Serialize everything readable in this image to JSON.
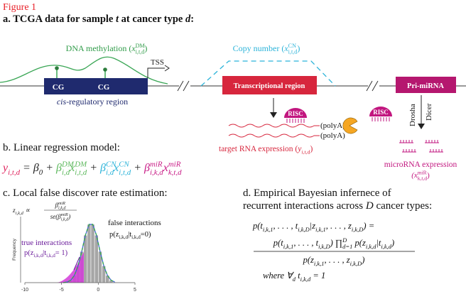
{
  "figure_label": "Figure 1",
  "panel_a": {
    "title": [
      {
        "text": "a. TCGA data for sample "
      },
      {
        "text": "t",
        "italic": true
      },
      {
        "text": " at cancer type "
      },
      {
        "text": "d",
        "italic": true
      },
      {
        "text": ":"
      }
    ],
    "methylation": [
      {
        "text": "DNA methylation ("
      },
      {
        "text": "x",
        "sup": "DM",
        "sub": "i,t,d",
        "italic": true
      },
      {
        "text": ")"
      }
    ],
    "copy_number": [
      {
        "text": "Copy number ("
      },
      {
        "text": "x",
        "sup": "CN",
        "sub": "i,t,d",
        "italic": true
      },
      {
        "text": ")"
      }
    ],
    "tss": "TSS",
    "cg": [
      "CG",
      "CG"
    ],
    "cis_region": [
      {
        "text": "cis",
        "italic": true
      },
      {
        "text": "-regulatory region"
      }
    ],
    "transcriptional_region": "Transcriptional region",
    "pri_mirna": "Pri-miRNA",
    "risc": [
      "RISC",
      "RISC"
    ],
    "polya": [
      "(polyA)",
      "(polyA)"
    ],
    "drosha": "Drosha",
    "dicer": "Dicer",
    "target_expression": [
      {
        "text": "target RNA expression ("
      },
      {
        "text": "y",
        "sub": "i,t,d",
        "italic": true
      },
      {
        "text": ")"
      }
    ],
    "mirna_expression": "microRNA expression",
    "mirna_symbol": [
      {
        "text": "(x",
        "sup": "miR",
        "sub": "k,t,d",
        "italic": true
      },
      {
        "text": ")"
      }
    ]
  },
  "panel_b": {
    "title": "b. Linear regression model:",
    "equation": [
      {
        "text": "y",
        "sub": "i,t,d",
        "color": "#e0245e"
      },
      {
        "text": " = β",
        "sub": "0",
        "color": "#222222"
      },
      {
        "text": " + ",
        "color": "#222222"
      },
      {
        "text": "β",
        "sup": "DM",
        "sub": "i,d",
        "color": "#5cb85c"
      },
      {
        "text": "x",
        "sup": "DM",
        "sub": "i,t,d",
        "color": "#5cb85c"
      },
      {
        "text": " + ",
        "color": "#222222"
      },
      {
        "text": "β",
        "sup": "CN",
        "sub": "i,d",
        "color": "#2bb3d9"
      },
      {
        "text": "x",
        "sup": "CN",
        "sub": "i,t,d",
        "color": "#2bb3d9"
      },
      {
        "text": " + ",
        "color": "#222222"
      },
      {
        "text": "β",
        "sup": "miR",
        "sub": "i,k,d",
        "color": "#c81b86"
      },
      {
        "text": "x",
        "sup": "miR",
        "sub": "k,t,d",
        "color": "#c81b86"
      }
    ]
  },
  "panel_c": {
    "title": "c. Local false discover rate estimation:",
    "formula_lhs": [
      {
        "text": "z",
        "sub": "i,k,d"
      },
      {
        "text": " ∝"
      }
    ],
    "formula_num": [
      {
        "text": "β",
        "sup": "miR",
        "sub": "i,k,d"
      }
    ],
    "formula_den": [
      {
        "text": "se(β",
        "sup": "miR",
        "sub": "i,k,d"
      },
      {
        "text": ")"
      }
    ],
    "histogram": {
      "bins": [
        -5,
        -4.5,
        -4,
        -3.5,
        -3,
        -2.5,
        -2,
        -1.5,
        -1,
        -0.5,
        0,
        0.5,
        1,
        1.5,
        2,
        2.5
      ],
      "counts": [
        0,
        1,
        4,
        12,
        28,
        52,
        79,
        97,
        97,
        79,
        52,
        28,
        12,
        4,
        1
      ],
      "xlim": [
        -10,
        5
      ],
      "xticks": [
        -10,
        -5,
        0,
        5
      ],
      "ylim": [
        0,
        110
      ],
      "ylabel": "Frequency",
      "color": "#a6a6a6"
    },
    "false_label": "false interactions",
    "false_expr": [
      {
        "text": "p(z",
        "sub": "i,k,d"
      },
      {
        "text": "|t",
        "sub": "i,k,d"
      },
      {
        "text": "=0)"
      }
    ],
    "true_label": "true interactions",
    "true_expr": [
      {
        "text": "p(z",
        "sub": "i,k,d"
      },
      {
        "text": "|t",
        "sub": "i,k,d"
      },
      {
        "text": "= 1)"
      }
    ]
  },
  "panel_d": {
    "title_1": "d. Empirical Bayesian infernece of",
    "title_2": [
      {
        "text": "recurrent interactions across "
      },
      {
        "text": "D",
        "italic": true
      },
      {
        "text": " cancer types:"
      }
    ],
    "line_1": [
      {
        "text": "p(t",
        "sub": "i,k,1"
      },
      {
        "text": ", . . . , t",
        "sub": "i,k,D"
      },
      {
        "text": "|z",
        "sub": "i,k,1"
      },
      {
        "text": ", . . . , z",
        "sub": "i,k,D"
      },
      {
        "text": ") ="
      }
    ],
    "numerator": [
      {
        "text": "p(t",
        "sub": "i,k,1"
      },
      {
        "text": ", . . . , t",
        "sub": "i,k,D"
      },
      {
        "text": ") ∏",
        "sup": "D",
        "sub": "d=1"
      },
      {
        "text": " p(z",
        "sub": "i,k,d"
      },
      {
        "text": "|t",
        "sub": "i,k,d"
      },
      {
        "text": ")"
      }
    ],
    "denominator": [
      {
        "text": "p(z",
        "sub": "i,k,1"
      },
      {
        "text": ", . . . , z",
        "sub": "i,k,D"
      },
      {
        "text": ")"
      }
    ],
    "where": [
      {
        "text": "where    ∀",
        "sub": "d"
      },
      {
        "text": " t",
        "sub": "i,k,d"
      },
      {
        "text": " = 1"
      }
    ]
  }
}
